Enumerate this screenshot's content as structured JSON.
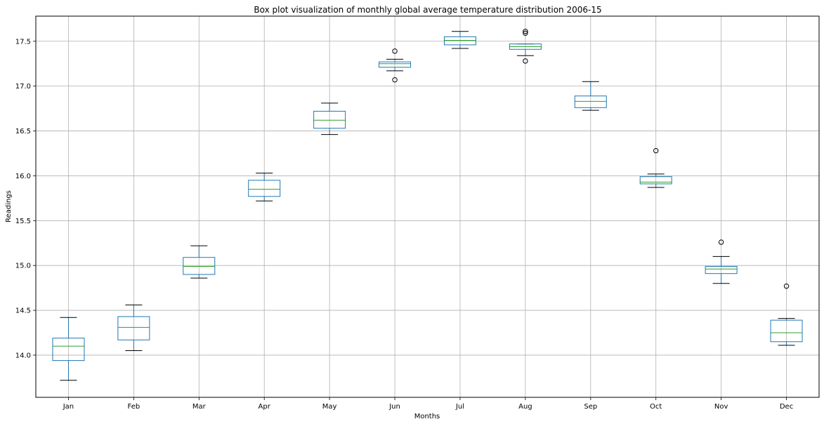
{
  "chart_data": {
    "type": "box",
    "title": "Box plot visualization of monthly global average temperature distribution 2006-15",
    "xlabel": "Months",
    "ylabel": "Readings",
    "ylim": [
      13.53,
      17.78
    ],
    "yticks": [
      14.0,
      14.5,
      15.0,
      15.5,
      16.0,
      16.5,
      17.0,
      17.5
    ],
    "grid": true,
    "colors": {
      "box": "#1f77b4",
      "median": "#2ca02c",
      "whisker": "#000000",
      "grid": "#b0b0b0"
    },
    "categories": [
      "Jan",
      "Feb",
      "Mar",
      "Apr",
      "May",
      "Jun",
      "Jul",
      "Aug",
      "Sep",
      "Oct",
      "Nov",
      "Dec"
    ],
    "boxes": [
      {
        "category": "Jan",
        "whisker_low": 13.72,
        "q1": 13.94,
        "median": 14.1,
        "q3": 14.19,
        "whisker_high": 14.42,
        "outliers": []
      },
      {
        "category": "Feb",
        "whisker_low": 14.05,
        "q1": 14.17,
        "median": 14.31,
        "q3": 14.43,
        "whisker_high": 14.56,
        "outliers": []
      },
      {
        "category": "Mar",
        "whisker_low": 14.86,
        "q1": 14.9,
        "median": 14.99,
        "q3": 15.09,
        "whisker_high": 15.22,
        "outliers": []
      },
      {
        "category": "Apr",
        "whisker_low": 15.72,
        "q1": 15.77,
        "median": 15.85,
        "q3": 15.95,
        "whisker_high": 16.03,
        "outliers": []
      },
      {
        "category": "May",
        "whisker_low": 16.46,
        "q1": 16.53,
        "median": 16.62,
        "q3": 16.72,
        "whisker_high": 16.81,
        "outliers": []
      },
      {
        "category": "Jun",
        "whisker_low": 17.17,
        "q1": 17.21,
        "median": 17.25,
        "q3": 17.27,
        "whisker_high": 17.3,
        "outliers": [
          17.39,
          17.07
        ]
      },
      {
        "category": "Jul",
        "whisker_low": 17.42,
        "q1": 17.46,
        "median": 17.51,
        "q3": 17.55,
        "whisker_high": 17.61,
        "outliers": []
      },
      {
        "category": "Aug",
        "whisker_low": 17.34,
        "q1": 17.41,
        "median": 17.44,
        "q3": 17.47,
        "whisker_high": 17.47,
        "outliers": [
          17.61,
          17.59,
          17.28
        ]
      },
      {
        "category": "Sep",
        "whisker_low": 16.73,
        "q1": 16.76,
        "median": 16.83,
        "q3": 16.89,
        "whisker_high": 17.05,
        "outliers": []
      },
      {
        "category": "Oct",
        "whisker_low": 15.87,
        "q1": 15.91,
        "median": 15.93,
        "q3": 15.99,
        "whisker_high": 16.02,
        "outliers": [
          16.28
        ]
      },
      {
        "category": "Nov",
        "whisker_low": 14.8,
        "q1": 14.91,
        "median": 14.96,
        "q3": 14.99,
        "whisker_high": 15.1,
        "outliers": [
          15.26
        ]
      },
      {
        "category": "Dec",
        "whisker_low": 14.11,
        "q1": 14.15,
        "median": 14.25,
        "q3": 14.39,
        "whisker_high": 14.41,
        "outliers": [
          14.77
        ]
      }
    ]
  }
}
